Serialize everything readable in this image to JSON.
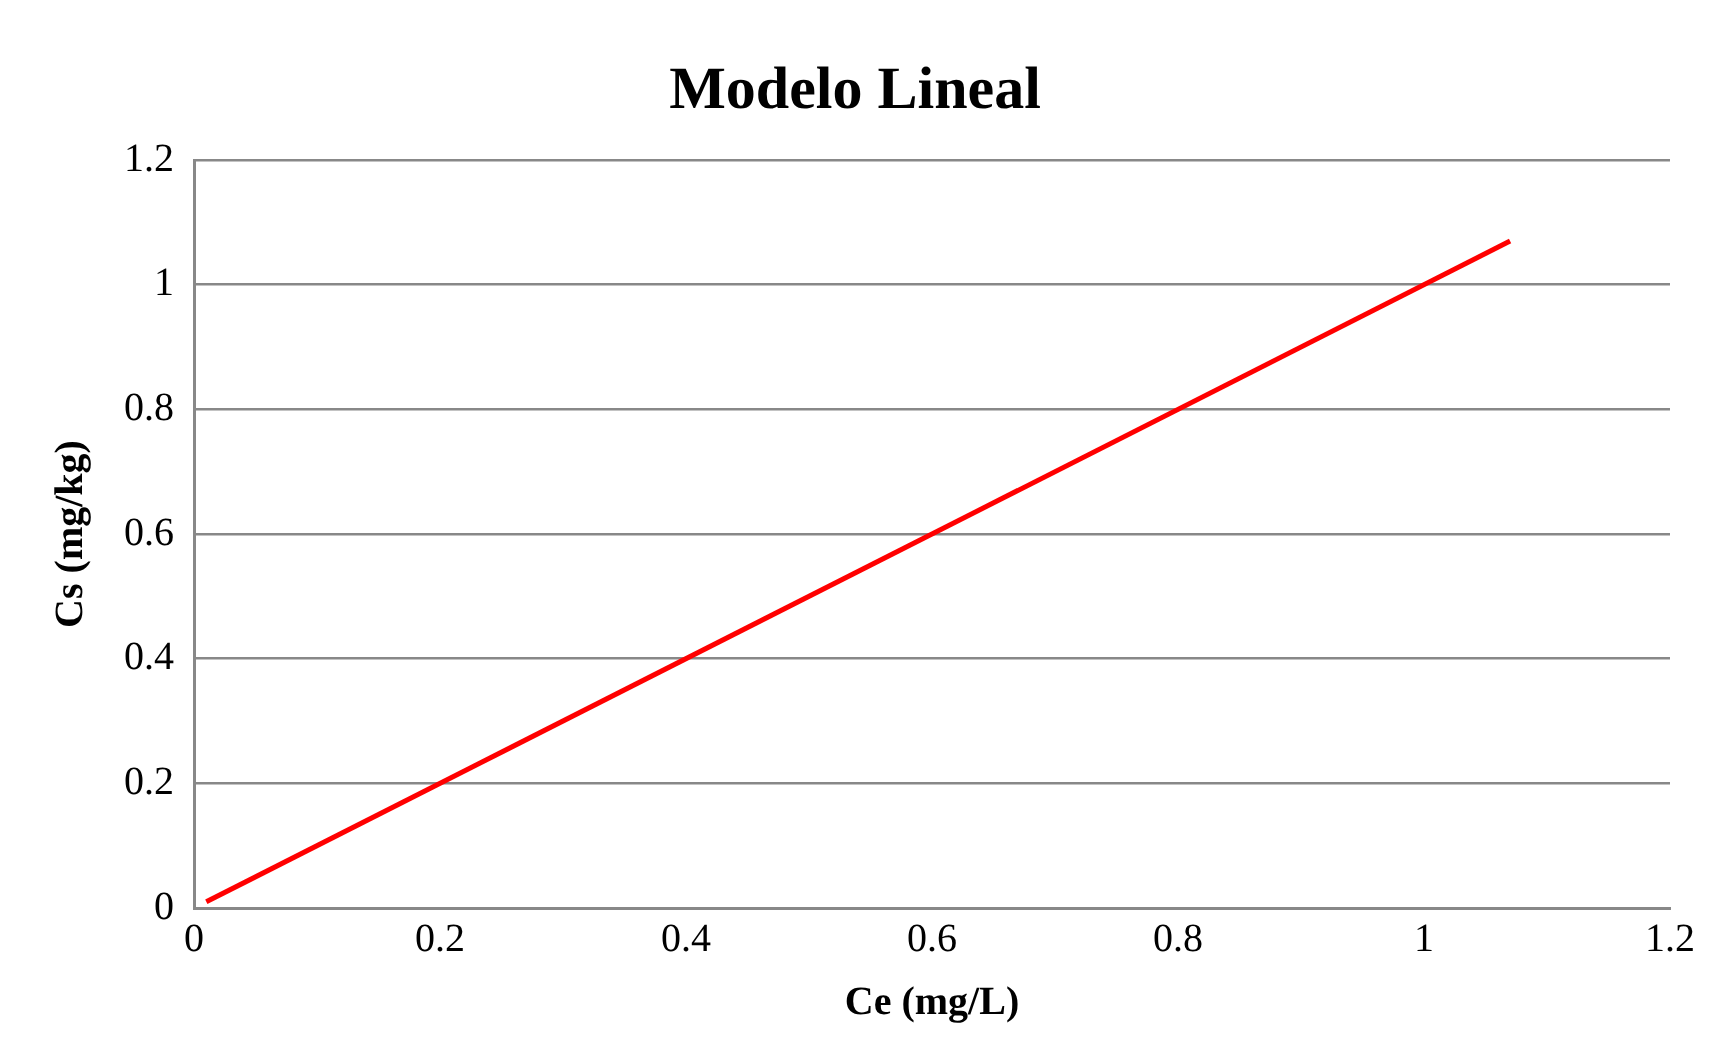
{
  "chart_data": {
    "type": "line",
    "title": "Modelo Lineal",
    "xlabel": "Ce (mg/L)",
    "ylabel": "Cs (mg/kg)",
    "x": [
      0.01,
      1.07
    ],
    "series": [
      {
        "color": "#ff0000",
        "values": [
          0.01,
          1.07
        ]
      }
    ],
    "xlim": [
      0,
      1.2
    ],
    "xticks": [
      0,
      0.2,
      0.4,
      0.6,
      0.8,
      1,
      1.2
    ],
    "ylim": [
      0,
      1.2
    ],
    "yticks": [
      0,
      0.2,
      0.4,
      0.6,
      0.8,
      1,
      1.2
    ],
    "grid": "y",
    "legend": false,
    "marker": "none",
    "line_style": "solid"
  }
}
